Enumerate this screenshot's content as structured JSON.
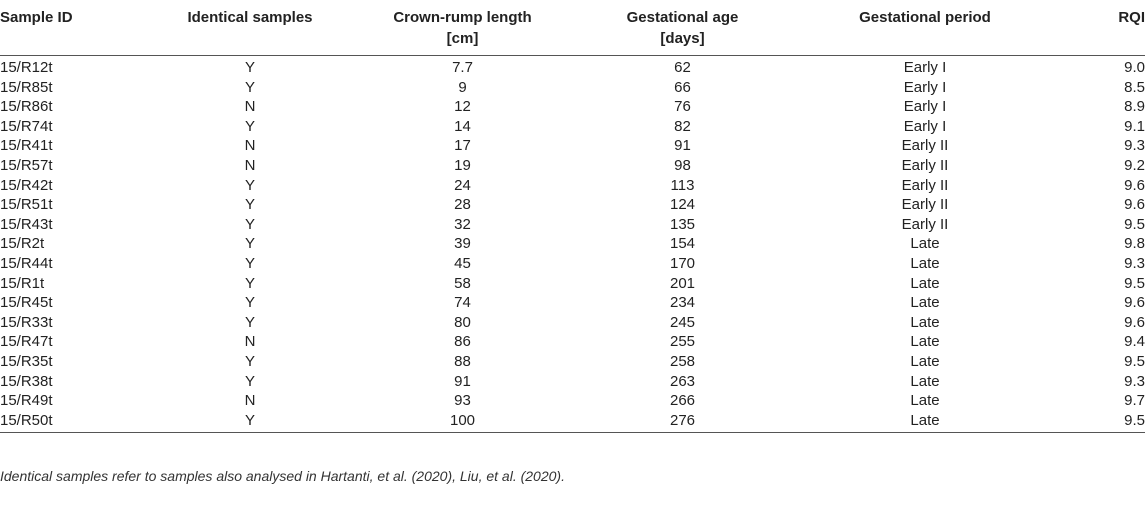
{
  "table": {
    "headers": [
      {
        "line1": "Sample ID",
        "line2": ""
      },
      {
        "line1": "Identical samples",
        "line2": ""
      },
      {
        "line1": "Crown-rump length",
        "line2": "[cm]"
      },
      {
        "line1": "Gestational age",
        "line2": "[days]"
      },
      {
        "line1": "Gestational period",
        "line2": ""
      },
      {
        "line1": "RQI",
        "line2": ""
      }
    ],
    "rows": [
      [
        "15/R12t",
        "Y",
        "7.7",
        "62",
        "Early I",
        "9.0"
      ],
      [
        "15/R85t",
        "Y",
        "9",
        "66",
        "Early I",
        "8.5"
      ],
      [
        "15/R86t",
        "N",
        "12",
        "76",
        "Early I",
        "8.9"
      ],
      [
        "15/R74t",
        "Y",
        "14",
        "82",
        "Early I",
        "9.1"
      ],
      [
        "15/R41t",
        "N",
        "17",
        "91",
        "Early II",
        "9.3"
      ],
      [
        "15/R57t",
        "N",
        "19",
        "98",
        "Early II",
        "9.2"
      ],
      [
        "15/R42t",
        "Y",
        "24",
        "113",
        "Early II",
        "9.6"
      ],
      [
        "15/R51t",
        "Y",
        "28",
        "124",
        "Early II",
        "9.6"
      ],
      [
        "15/R43t",
        "Y",
        "32",
        "135",
        "Early II",
        "9.5"
      ],
      [
        "15/R2t",
        "Y",
        "39",
        "154",
        "Late",
        "9.8"
      ],
      [
        "15/R44t",
        "Y",
        "45",
        "170",
        "Late",
        "9.3"
      ],
      [
        "15/R1t",
        "Y",
        "58",
        "201",
        "Late",
        "9.5"
      ],
      [
        "15/R45t",
        "Y",
        "74",
        "234",
        "Late",
        "9.6"
      ],
      [
        "15/R33t",
        "Y",
        "80",
        "245",
        "Late",
        "9.6"
      ],
      [
        "15/R47t",
        "N",
        "86",
        "255",
        "Late",
        "9.4"
      ],
      [
        "15/R35t",
        "Y",
        "88",
        "258",
        "Late",
        "9.5"
      ],
      [
        "15/R38t",
        "Y",
        "91",
        "263",
        "Late",
        "9.3"
      ],
      [
        "15/R49t",
        "N",
        "93",
        "266",
        "Late",
        "9.7"
      ],
      [
        "15/R50t",
        "Y",
        "100",
        "276",
        "Late",
        "9.5"
      ]
    ]
  },
  "footnote": "Identical samples refer to samples also analysed in Hartanti, et al. (2020), Liu, et al. (2020)."
}
